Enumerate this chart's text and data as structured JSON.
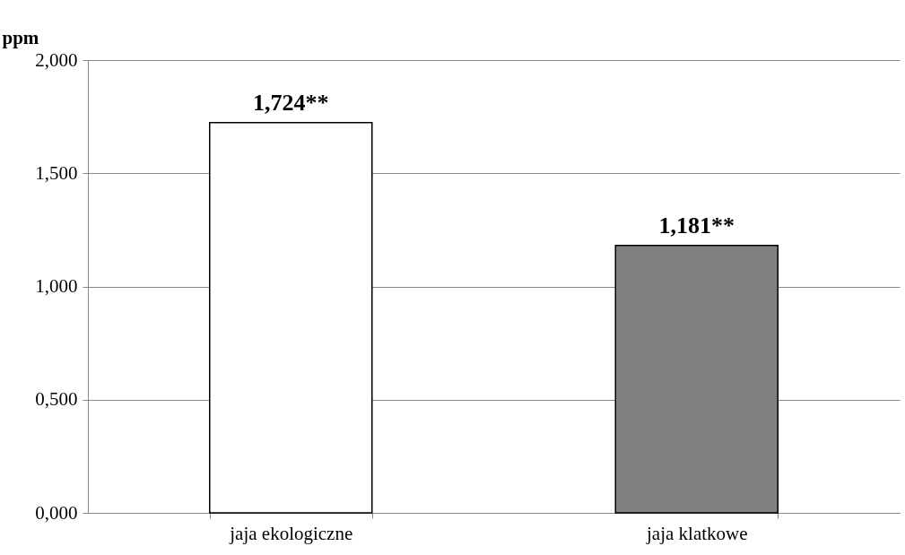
{
  "chart_data": {
    "type": "bar",
    "ylabel": "ppm",
    "categories": [
      "jaja ekologiczne",
      "jaja klatkowe"
    ],
    "values": [
      1.724,
      1.181
    ],
    "colors": [
      "#ffffff",
      "#808080"
    ],
    "value_labels": [
      "1,724**",
      "1,181**"
    ],
    "ylim": [
      0,
      2
    ],
    "yticks": [
      {
        "value": 0,
        "label": "0,000"
      },
      {
        "value": 0.5,
        "label": "0,500"
      },
      {
        "value": 1,
        "label": "1,000"
      },
      {
        "value": 1.5,
        "label": "1,500"
      },
      {
        "value": 2,
        "label": "2,000"
      }
    ],
    "grid": "y"
  }
}
